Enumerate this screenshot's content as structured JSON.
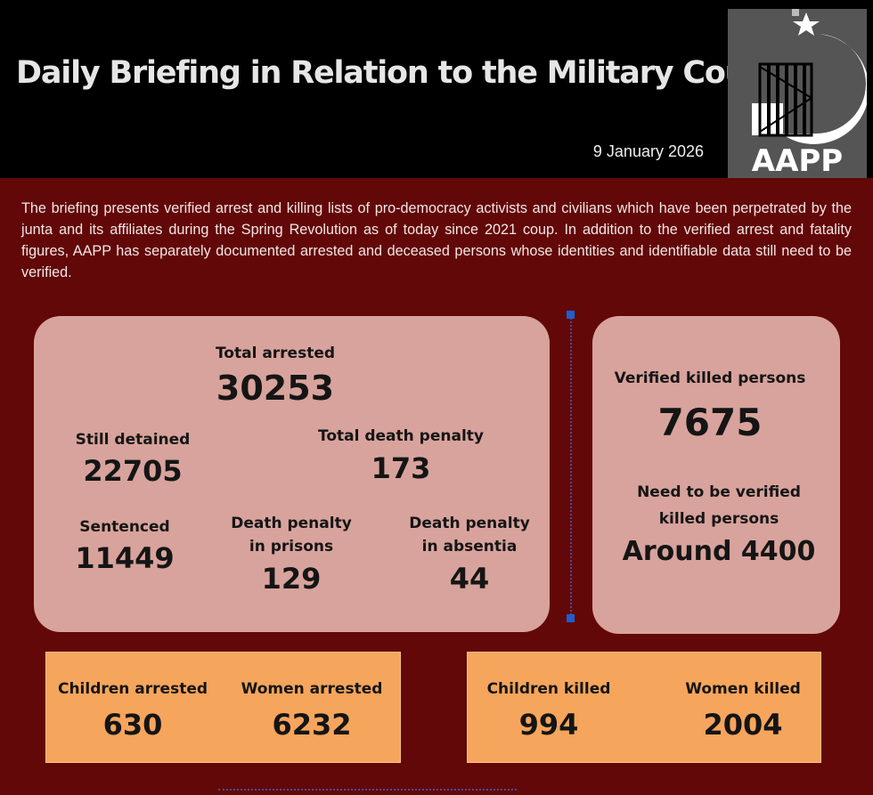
{
  "header": {
    "title": "Daily Briefing in Relation to the Military Coup",
    "date": "9 January 2026",
    "logo_text": "AAPP"
  },
  "intro": "The briefing presents verified arrest and killing lists of pro-democracy activists and civilians which have been perpetrated by the junta and its affiliates during the Spring Revolution as of today since 2021 coup. In addition to the verified arrest and fatality figures, AAPP has separately documented arrested and deceased persons whose identities and identifiable data still need to be verified.",
  "arrests": {
    "total": {
      "label": "Total arrested",
      "value": "30253"
    },
    "detained": {
      "label": "Still detained",
      "value": "22705"
    },
    "death_penalty": {
      "label": "Total death penalty",
      "value": "173"
    },
    "sentenced": {
      "label": "Sentenced",
      "value": "11449"
    },
    "dp_prisons": {
      "label1": "Death penalty",
      "label2": "in prisons",
      "value": "129"
    },
    "dp_absentia": {
      "label1": "Death penalty",
      "label2": "in absentia",
      "value": "44"
    }
  },
  "killed": {
    "verified": {
      "label": "Verified killed persons",
      "value": "7675"
    },
    "unverified": {
      "label1": "Need to be verified",
      "label2": "killed persons",
      "value": "Around 4400"
    }
  },
  "arrest_breakdown": {
    "children": {
      "label": "Children arrested",
      "value": "630"
    },
    "women": {
      "label": "Women arrested",
      "value": "6232"
    }
  },
  "killed_breakdown": {
    "children": {
      "label": "Children killed",
      "value": "994"
    },
    "women": {
      "label": "Women killed",
      "value": "2004"
    }
  },
  "colors": {
    "background": "#620808",
    "card": "#d8a39c",
    "orange": "#f6a55c",
    "header": "#000000"
  }
}
